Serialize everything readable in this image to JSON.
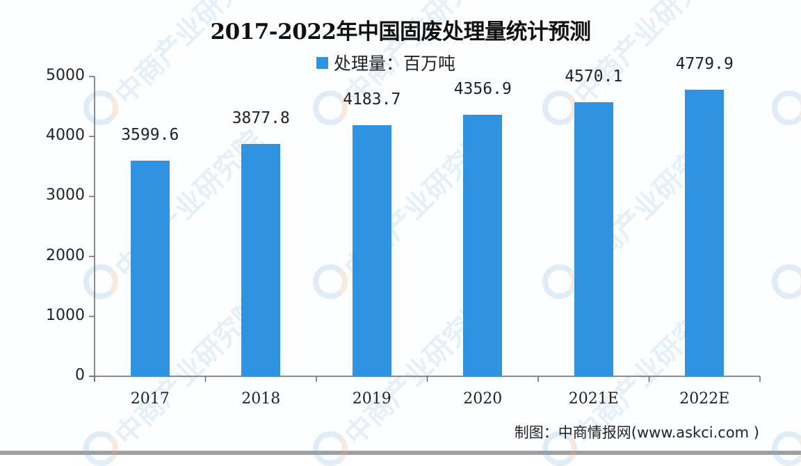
{
  "chart_data": {
    "type": "bar",
    "title": "2017-2022年中国固废处理量统计预测",
    "legend": [
      {
        "name": "处理量：百万吨",
        "color": "#2f93e4"
      }
    ],
    "legend_position": "top",
    "categories": [
      "2017",
      "2018",
      "2019",
      "2020",
      "2021E",
      "2022E"
    ],
    "series": [
      {
        "name": "处理量：百万吨",
        "values": [
          3599.6,
          3877.8,
          4183.7,
          4356.9,
          4570.1,
          4779.9
        ]
      }
    ],
    "value_labels": [
      "3599.6",
      "3877.8",
      "4183.7",
      "4356.9",
      "4570.1",
      "4779.9"
    ],
    "xlabel": "",
    "ylabel": "",
    "ylim": [
      0,
      5000
    ],
    "yticks": [
      0,
      1000,
      2000,
      3000,
      4000,
      5000
    ],
    "grid": false
  },
  "source": "制图：中商情报网(www.askci.com )",
  "watermark": "中商产业研究院",
  "colors": {
    "bar": "#2f93e4",
    "axis": "#666666"
  }
}
